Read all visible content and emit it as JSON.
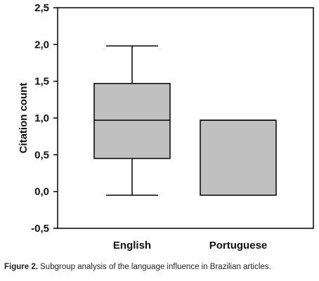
{
  "chart_data": {
    "type": "box",
    "ylabel": "Citation count",
    "ylim": [
      -0.5,
      2.5
    ],
    "yticks": [
      "-0,5",
      "0,0",
      "0,5",
      "1,0",
      "1,5",
      "2,0",
      "2,5"
    ],
    "ytick_values": [
      -0.5,
      0.0,
      0.5,
      1.0,
      1.5,
      2.0,
      2.5
    ],
    "categories": [
      "English",
      "Portuguese"
    ],
    "boxes": [
      {
        "category": "English",
        "whisker_low": -0.05,
        "q1": 0.45,
        "median": 0.97,
        "q3": 1.47,
        "whisker_high": 1.98
      },
      {
        "category": "Portuguese",
        "whisker_low": -0.05,
        "q1": -0.05,
        "median": 0.97,
        "q3": 0.97,
        "whisker_high": 0.97
      }
    ],
    "box_color": "#c0c0c0",
    "grid": false
  },
  "caption": {
    "label": "Figure 2.",
    "text": " Subgroup analysis of the language influence in Brazilian articles."
  }
}
